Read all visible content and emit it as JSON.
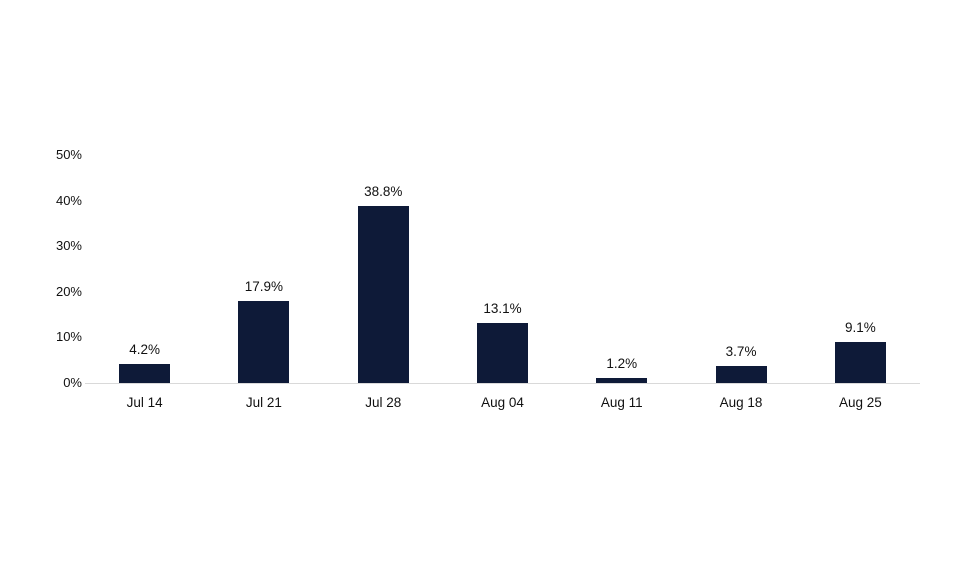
{
  "chart_data": {
    "type": "bar",
    "title": "",
    "xlabel": "",
    "ylabel": "",
    "categories": [
      "Jul 14",
      "Jul 21",
      "Jul 28",
      "Aug 04",
      "Aug 11",
      "Aug 18",
      "Aug 25"
    ],
    "values": [
      4.2,
      17.9,
      38.8,
      13.1,
      1.2,
      3.7,
      9.1
    ],
    "value_labels": [
      "4.2%",
      "17.9%",
      "38.8%",
      "13.1%",
      "1.2%",
      "3.7%",
      "9.1%"
    ],
    "ylim": [
      0,
      50
    ],
    "yticks": [
      {
        "value": 0,
        "label": "0%"
      },
      {
        "value": 10,
        "label": "10%"
      },
      {
        "value": 20,
        "label": "20%"
      },
      {
        "value": 30,
        "label": "30%"
      },
      {
        "value": 40,
        "label": "40%"
      },
      {
        "value": 50,
        "label": "50%"
      }
    ],
    "grid": false,
    "legend_position": "none",
    "colors": {
      "bar": "#0e1a38",
      "axis_line": "#d9d9d9",
      "text": "#111111",
      "background": "#ffffff"
    }
  }
}
